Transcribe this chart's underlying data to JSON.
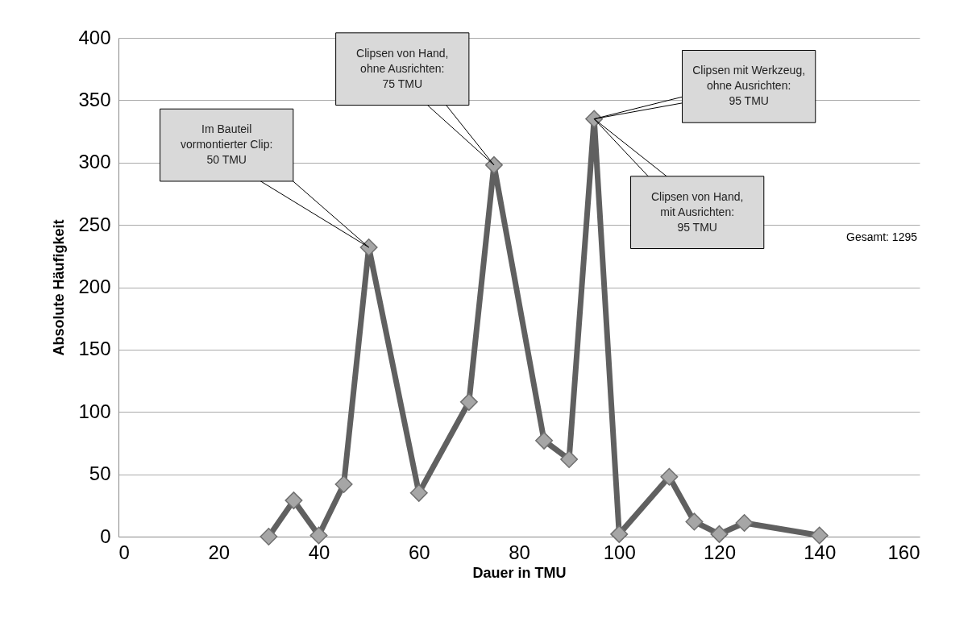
{
  "chart_data": {
    "type": "line",
    "xlabel": "Dauer in TMU",
    "ylabel": "Absolute Häufigkeit",
    "x": [
      30,
      35,
      40,
      45,
      50,
      60,
      70,
      75,
      85,
      90,
      95,
      100,
      110,
      115,
      120,
      125,
      140
    ],
    "series": [
      {
        "color": "#606060",
        "values": [
          0,
          29,
          1,
          42,
          232,
          35,
          108,
          298,
          77,
          62,
          335,
          2,
          48,
          12,
          2,
          11,
          1
        ]
      }
    ],
    "xlim": [
      0,
      160
    ],
    "xticks": [
      0,
      20,
      40,
      60,
      80,
      100,
      120,
      140,
      160
    ],
    "ylim": [
      0,
      400
    ],
    "yticks": [
      0,
      50,
      100,
      150,
      200,
      250,
      300,
      350,
      400
    ],
    "grid": "y",
    "marker": "diamond",
    "line_style": "solid",
    "annotations": [
      {
        "text": "Im Bauteil\nvormontierter Clip:\n50 TMU",
        "x": 50,
        "y": 232
      },
      {
        "text": "Clipsen von Hand,\nohne Ausrichten:\n75 TMU",
        "x": 75,
        "y": 298
      },
      {
        "text": "Clipsen mit Werkzeug,\nohne Ausrichten:\n95 TMU",
        "x": 95,
        "y": 335
      },
      {
        "text": "Clipsen von Hand,\nmit Ausrichten:\n95 TMU",
        "x": 95,
        "y": 335
      },
      "Gesamt: 1295"
    ]
  }
}
